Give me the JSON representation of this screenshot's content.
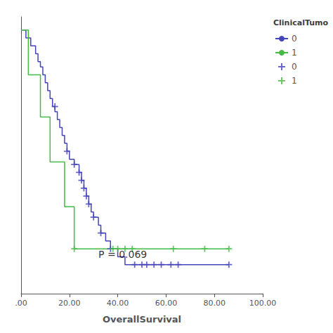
{
  "chart_data": {
    "type": "survival",
    "xlabel": "OverallSurvival",
    "xlim": [
      0,
      100
    ],
    "ylim": [
      0,
      1.05
    ],
    "xticks": [
      {
        "value": 0,
        "label": ".00"
      },
      {
        "value": 20,
        "label": "20.00"
      },
      {
        "value": 40,
        "label": "40.00"
      },
      {
        "value": 60,
        "label": "60.00"
      },
      {
        "value": 80,
        "label": "80.00"
      },
      {
        "value": 100,
        "label": "100.00"
      }
    ],
    "yticks": [],
    "tick_labels": "x",
    "grid": false,
    "legend": "right",
    "legend_title": "ClinicalTumo",
    "annotations": [
      {
        "text": "P = 0.069",
        "x": 32,
        "y": 0.15
      }
    ],
    "series": [
      {
        "name": "0",
        "type": "line",
        "color": "#4444BB",
        "x": [
          0,
          2,
          2,
          4,
          4,
          6,
          6,
          7,
          7,
          8,
          8,
          9,
          9,
          10,
          10,
          11,
          11,
          12,
          12,
          13,
          13,
          14,
          14,
          15,
          15,
          16,
          16,
          17,
          17,
          18,
          18,
          19,
          19,
          20,
          20,
          22,
          22,
          24,
          24,
          25,
          25,
          26,
          26,
          27,
          27,
          28,
          28,
          29,
          29,
          30,
          30,
          32,
          32,
          33,
          33,
          35,
          35,
          37,
          37,
          40,
          40,
          43,
          43,
          86
        ],
        "values": [
          1.0,
          1.0,
          0.97,
          0.97,
          0.94,
          0.94,
          0.91,
          0.91,
          0.88,
          0.88,
          0.86,
          0.86,
          0.83,
          0.83,
          0.8,
          0.8,
          0.77,
          0.77,
          0.74,
          0.74,
          0.71,
          0.71,
          0.69,
          0.69,
          0.66,
          0.66,
          0.63,
          0.63,
          0.6,
          0.6,
          0.57,
          0.57,
          0.54,
          0.54,
          0.51,
          0.51,
          0.49,
          0.49,
          0.46,
          0.46,
          0.43,
          0.43,
          0.4,
          0.4,
          0.37,
          0.37,
          0.34,
          0.34,
          0.31,
          0.31,
          0.29,
          0.29,
          0.26,
          0.26,
          0.23,
          0.23,
          0.2,
          0.2,
          0.17,
          0.17,
          0.14,
          0.14,
          0.11,
          0.11
        ]
      },
      {
        "name": "1",
        "type": "line",
        "color": "#44BB44",
        "x": [
          0,
          3,
          3,
          8,
          8,
          12,
          12,
          18,
          18,
          22,
          22,
          86
        ],
        "values": [
          1.0,
          1.0,
          0.83,
          0.83,
          0.67,
          0.67,
          0.5,
          0.5,
          0.33,
          0.33,
          0.17,
          0.17
        ]
      },
      {
        "name": "0",
        "type": "scatter",
        "marker": "plus",
        "color": "#4444BB",
        "x": [
          14,
          19,
          22,
          24,
          25,
          26,
          27,
          28,
          30,
          33,
          37,
          47,
          50,
          52,
          55,
          58,
          62,
          65,
          86
        ],
        "values": [
          0.71,
          0.54,
          0.49,
          0.46,
          0.43,
          0.4,
          0.37,
          0.34,
          0.29,
          0.23,
          0.17,
          0.11,
          0.11,
          0.11,
          0.11,
          0.11,
          0.11,
          0.11,
          0.11
        ]
      },
      {
        "name": "1",
        "type": "scatter",
        "marker": "plus",
        "color": "#44BB44",
        "x": [
          22,
          38,
          40,
          43,
          46,
          63,
          76,
          86
        ],
        "values": [
          0.17,
          0.17,
          0.17,
          0.17,
          0.17,
          0.17,
          0.17,
          0.17
        ]
      }
    ]
  }
}
